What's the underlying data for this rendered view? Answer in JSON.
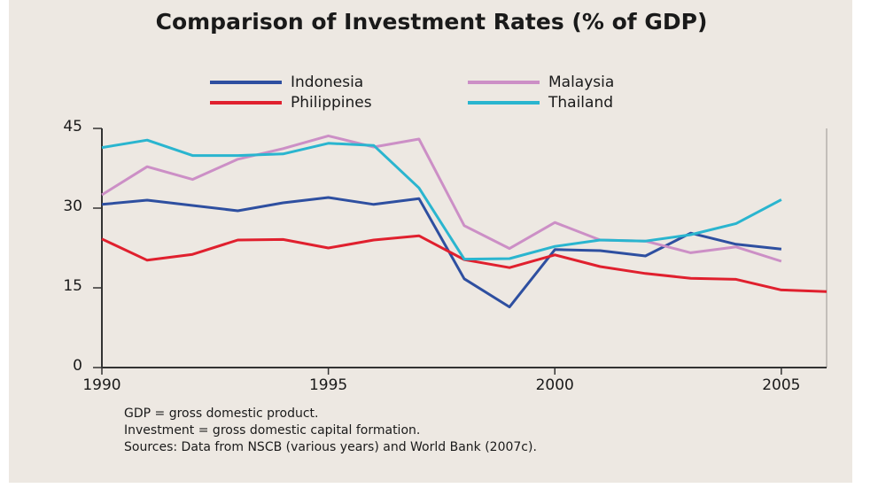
{
  "chart_data": {
    "type": "line",
    "title": "Comparison of Investment Rates (% of GDP)",
    "x": [
      1990,
      1991,
      1992,
      1993,
      1994,
      1995,
      1996,
      1997,
      1998,
      1999,
      2000,
      2001,
      2002,
      2003,
      2004,
      2005,
      2006
    ],
    "series": [
      {
        "name": "Indonesia",
        "color": "#2e4fa0",
        "values": [
          30.7,
          31.5,
          30.5,
          29.5,
          31.0,
          32.0,
          30.7,
          31.8,
          16.7,
          11.4,
          22.2,
          22.0,
          21.0,
          25.3,
          23.2,
          22.3,
          null
        ]
      },
      {
        "name": "Malaysia",
        "color": "#cc8fc6",
        "values": [
          32.5,
          37.8,
          35.4,
          39.2,
          41.2,
          43.6,
          41.5,
          43.0,
          26.7,
          22.4,
          27.3,
          24.0,
          23.8,
          21.6,
          22.7,
          20.0,
          null
        ]
      },
      {
        "name": "Philippines",
        "color": "#e0202e",
        "values": [
          24.2,
          20.2,
          21.3,
          24.0,
          24.1,
          22.5,
          24.0,
          24.8,
          20.3,
          18.8,
          21.2,
          19.0,
          17.7,
          16.8,
          16.6,
          14.6,
          14.3
        ]
      },
      {
        "name": "Thailand",
        "color": "#2ab5cf",
        "values": [
          41.4,
          42.8,
          39.9,
          39.9,
          40.2,
          42.2,
          41.8,
          33.8,
          20.4,
          20.5,
          22.8,
          24.0,
          23.8,
          25.0,
          27.1,
          31.6,
          null
        ]
      }
    ],
    "xlim": [
      1990,
      2006
    ],
    "xticks": [
      1990,
      1995,
      2000,
      2005
    ],
    "ylim": [
      0,
      45
    ],
    "yticks": [
      0,
      15,
      30,
      45
    ],
    "legend": "top",
    "notes": [
      "GDP = gross domestic product.",
      "Investment = gross domestic capital formation.",
      "Sources: Data from NSCB (various years) and World Bank (2007c)."
    ]
  }
}
